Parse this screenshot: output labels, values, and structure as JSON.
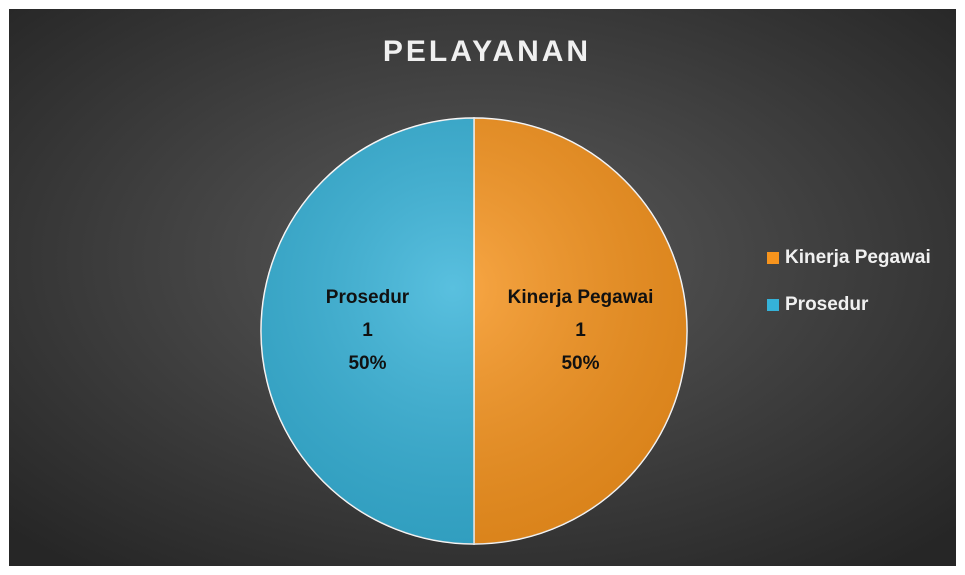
{
  "chart_data": {
    "type": "pie",
    "title": "PELAYANAN",
    "categories": [
      "Kinerja Pegawai",
      "Prosedur"
    ],
    "values": [
      1,
      1
    ],
    "percent_labels": [
      "50%",
      "50%"
    ],
    "colors": [
      "#f7941d",
      "#35b2d8"
    ],
    "legend": "right"
  }
}
